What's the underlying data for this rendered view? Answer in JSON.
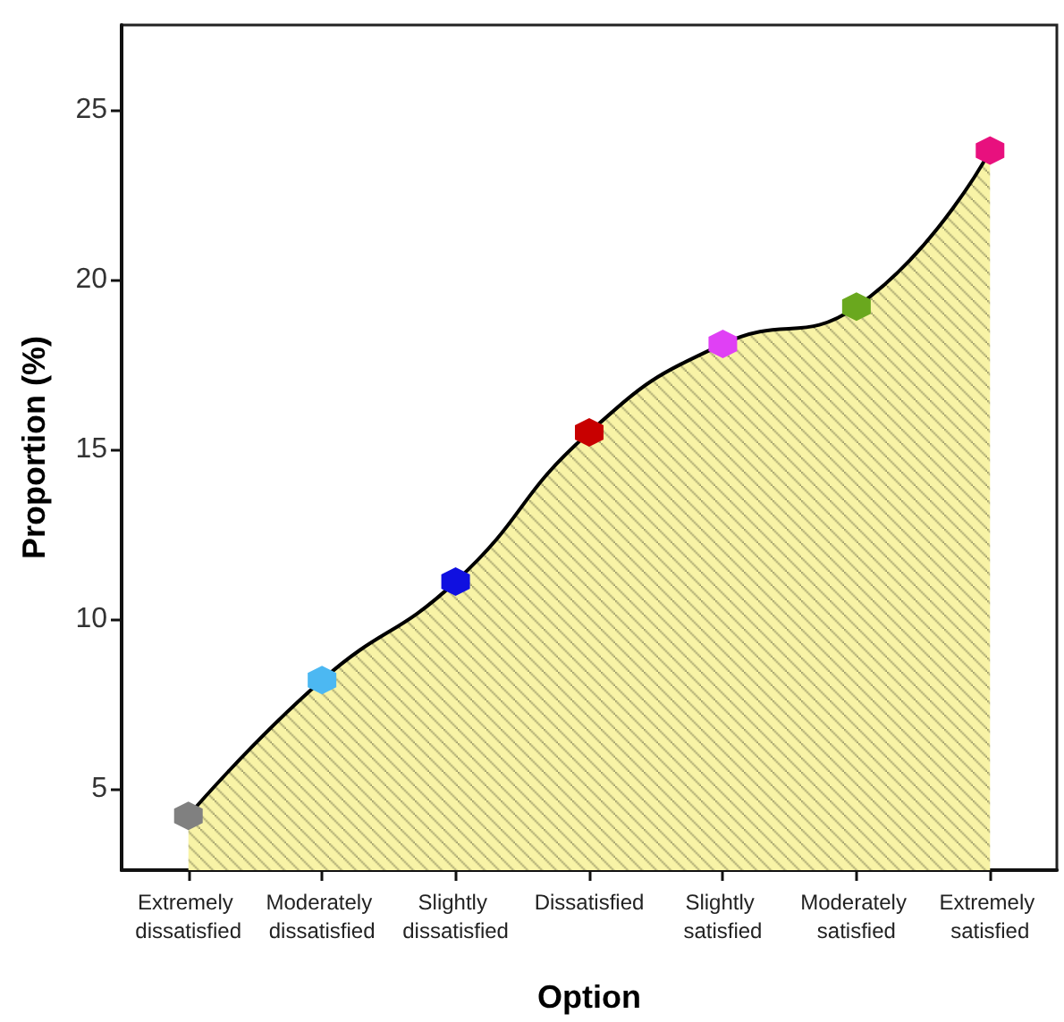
{
  "chart_data": {
    "type": "area",
    "xlabel": "Option",
    "ylabel": "Proportion (%)",
    "categories": [
      "Extremely dissatisfied",
      "Moderately dissatisfied",
      "Slightly dissatisfied",
      "Dissatisfied",
      "Slightly satisfied",
      "Moderately satisfied",
      "Extremely satisfied"
    ],
    "series": [
      {
        "color": "#f8f3a6",
        "values": [
          4.2,
          8.2,
          11.1,
          15.5,
          18.1,
          19.2,
          23.8
        ],
        "colors": [
          "#808080",
          "#4cb8f2",
          "#1010e0",
          "#c80000",
          "#e040f5",
          "#6aa81e",
          "#e8107e"
        ]
      }
    ],
    "ylim": [
      2.6,
      27.5
    ],
    "yticks": [
      5,
      10,
      15,
      20,
      25
    ],
    "grid": false,
    "line_style": "solid"
  }
}
